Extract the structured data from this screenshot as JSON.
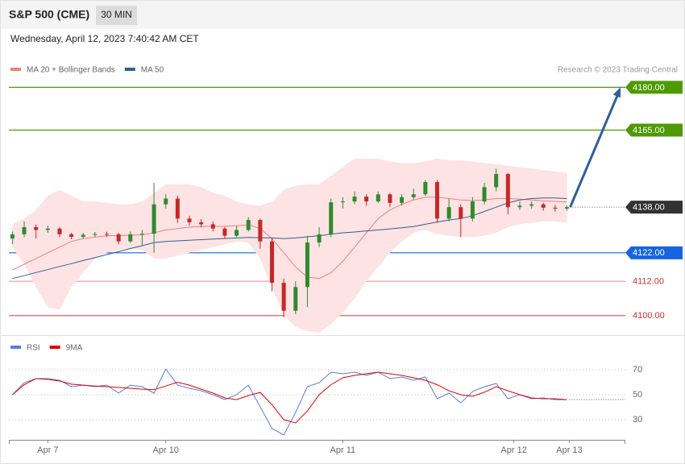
{
  "header": {
    "title": "S&P 500 (CME)",
    "interval": "30 MIN",
    "timestamp": "Wednesday, April 12, 2023 7:40:42 AM CET"
  },
  "chart_data": [
    {
      "type": "candlestick",
      "annotation": "Research © 2023 Trading Central",
      "up_color": "#2e8b2e",
      "down_color": "#c62828",
      "xlim": [
        -0.3,
        51.95
      ],
      "ylim": [
        4093.2,
        4183.4
      ],
      "candles": [
        [
          4127,
          4129.5,
          4125,
          4128.5
        ],
        [
          4128.5,
          4133,
          4127.5,
          4131
        ],
        [
          4131,
          4132,
          4127,
          4130
        ],
        [
          4130,
          4131.5,
          4129,
          4130.5
        ],
        [
          4130.5,
          4131,
          4127.5,
          4128.5
        ],
        [
          4128.5,
          4129,
          4126.8,
          4127.6
        ],
        [
          4127.6,
          4129,
          4127,
          4128.3
        ],
        [
          4128.3,
          4129.3,
          4127.6,
          4128.6
        ],
        [
          4128.6,
          4129.4,
          4127.5,
          4128.5
        ],
        [
          4128.5,
          4129,
          4125,
          4126
        ],
        [
          4126,
          4129.5,
          4125.5,
          4128.5
        ],
        [
          4128.5,
          4130,
          4124.5,
          4128.7
        ],
        [
          4128.7,
          4146.5,
          4122,
          4139
        ],
        [
          4139,
          4142.5,
          4137.5,
          4141
        ],
        [
          4141,
          4142,
          4132.5,
          4134
        ],
        [
          4134,
          4135,
          4131.5,
          4132.7
        ],
        [
          4132.7,
          4133.8,
          4131,
          4132
        ],
        [
          4132,
          4133,
          4129.5,
          4130.5
        ],
        [
          4130.5,
          4131,
          4127,
          4128
        ],
        [
          4128,
          4131.5,
          4127.5,
          4130
        ],
        [
          4130,
          4134.5,
          4129.5,
          4133.5
        ],
        [
          4133.5,
          4134,
          4123.5,
          4126
        ],
        [
          4126,
          4127,
          4108.5,
          4111.5
        ],
        [
          4111.5,
          4113,
          4099.4,
          4101.7
        ],
        [
          4101.7,
          4112,
          4100.5,
          4110
        ],
        [
          4110,
          4128,
          4103,
          4125.6
        ],
        [
          4125.6,
          4131,
          4124,
          4128.5
        ],
        [
          4128.5,
          4141,
          4127.5,
          4139.7
        ],
        [
          4139.7,
          4141.5,
          4137.5,
          4140
        ],
        [
          4140,
          4143.5,
          4139,
          4141.7
        ],
        [
          4141.7,
          4142.5,
          4138.5,
          4140
        ],
        [
          4140,
          4143.5,
          4139.5,
          4142.5
        ],
        [
          4142.5,
          4143,
          4138,
          4139.5
        ],
        [
          4139.5,
          4142.5,
          4138.5,
          4141.5
        ],
        [
          4141.5,
          4144.5,
          4140.5,
          4142.5
        ],
        [
          4142.5,
          4147.5,
          4142,
          4146.8
        ],
        [
          4146.8,
          4147.5,
          4132.5,
          4134
        ],
        [
          4134,
          4141,
          4133,
          4138
        ],
        [
          4138,
          4139,
          4127.5,
          4134
        ],
        [
          4134,
          4141.5,
          4133,
          4140
        ],
        [
          4140,
          4146.5,
          4139,
          4145
        ],
        [
          4145,
          4151.5,
          4143.5,
          4149.6
        ],
        [
          4149.6,
          4150,
          4135.5,
          4138
        ],
        [
          4138,
          4140,
          4137,
          4138.5
        ],
        [
          4138.5,
          4140,
          4137.5,
          4139
        ],
        [
          4139,
          4139.5,
          4136.8,
          4137.8
        ],
        [
          4137.8,
          4138.8,
          4136.5,
          4137.5
        ],
        [
          4137.5,
          4138.6,
          4136.8,
          4138
        ]
      ],
      "series": [
        {
          "name": "MA 20 + Bollinger Bands",
          "color": "#f08080",
          "band_color": "#fde3e3",
          "values": [
            4116,
            4118,
            4120,
            4122,
            4124,
            4126,
            4127,
            4127.5,
            4128,
            4128,
            4128.2,
            4128.3,
            4129,
            4130,
            4130.5,
            4131,
            4131.2,
            4131.3,
            4131.3,
            4131.5,
            4131.8,
            4130.5,
            4127,
            4122,
            4117,
            4113.5,
            4113,
            4115,
            4119,
            4124,
            4129,
            4134,
            4137,
            4139,
            4140.5,
            4141.5,
            4141.5,
            4141,
            4140.5,
            4140.3,
            4140.5,
            4141,
            4141,
            4140.8,
            4140.5,
            4140.2,
            4140,
            4139.8
          ],
          "upper": [
            4132,
            4134,
            4137,
            4142,
            4144,
            4142,
            4140,
            4140,
            4139.5,
            4139,
            4139,
            4140,
            4143,
            4146,
            4146,
            4146,
            4145,
            4143,
            4142,
            4140,
            4139,
            4138.5,
            4140,
            4144,
            4145.5,
            4146,
            4146,
            4149,
            4152,
            4155,
            4155,
            4155,
            4154,
            4153.5,
            4153.5,
            4154,
            4155,
            4154.5,
            4154.5,
            4154,
            4153.5,
            4153,
            4152.5,
            4152,
            4151.5,
            4151,
            4150.5,
            4150
          ],
          "lower": [
            4124,
            4118,
            4110,
            4103,
            4102,
            4110,
            4115,
            4120,
            4122,
            4123,
            4123.5,
            4123,
            4120,
            4120,
            4121,
            4122,
            4123,
            4124,
            4125,
            4126,
            4125.5,
            4120,
            4110,
            4100,
            4096,
            4094.5,
            4094,
            4097,
            4101,
            4106,
            4112,
            4117,
            4122,
            4126,
            4129,
            4130,
            4128.5,
            4128,
            4127.5,
            4127.5,
            4128,
            4129,
            4131,
            4132,
            4132.5,
            4133,
            4133,
            4132.5
          ]
        },
        {
          "name": "MA 50",
          "color": "#2f5f98",
          "values": [
            4113,
            4114,
            4115.1,
            4116.1,
            4117.2,
            4118.2,
            4119.3,
            4120.3,
            4121.4,
            4122.4,
            4123.5,
            4124.5,
            4125.6,
            4126,
            4126.2,
            4126.4,
            4126.6,
            4126.8,
            4127,
            4127.2,
            4127.4,
            4127.3,
            4127.2,
            4127,
            4127.2,
            4127.6,
            4128,
            4128.5,
            4129,
            4129.3,
            4129.7,
            4130,
            4130.4,
            4130.8,
            4131.2,
            4132,
            4132.8,
            4133.5,
            4134,
            4135,
            4136.5,
            4138,
            4139.5,
            4140.5,
            4141,
            4141.2,
            4141.2,
            4141
          ]
        }
      ],
      "levels": [
        {
          "value": 4180,
          "label": "4180.00",
          "color": "#4e9a06",
          "box": true,
          "line": "solid"
        },
        {
          "value": 4165,
          "label": "4165.00",
          "color": "#4e9a06",
          "box": true,
          "line": "solid"
        },
        {
          "value": 4138,
          "label": "4138.00",
          "color": "#333333",
          "box": true,
          "line": "dotted"
        },
        {
          "value": 4122,
          "label": "4122.00",
          "color": "#1565e0",
          "box": true,
          "line": "solid"
        },
        {
          "value": 4112,
          "label": "4112.00",
          "color": "#d32f2f",
          "box": false,
          "line": "solid",
          "line_color": "#f4a0a0"
        },
        {
          "value": 4100,
          "label": "4100.00",
          "color": "#d32f2f",
          "box": false,
          "line": "solid",
          "line_color": "#e06060"
        }
      ],
      "arrow_color": "#2f5f98"
    },
    {
      "type": "line",
      "xlim": [
        -0.3,
        51.95
      ],
      "ylim": [
        14.5,
        82.3
      ],
      "yticks": [
        30,
        50,
        70
      ],
      "grid": true,
      "xticks": [
        {
          "value": 3,
          "label": "Apr 7"
        },
        {
          "value": 13,
          "label": "Apr 10"
        },
        {
          "value": 28,
          "label": "Apr 11"
        },
        {
          "value": 42.5,
          "label": "Apr 12"
        },
        {
          "value": 47.2,
          "label": "Apr 13"
        }
      ],
      "series": [
        {
          "name": "RSI",
          "color": "#5a7ee0",
          "values": [
            50,
            59.7,
            62.9,
            62.9,
            61.6,
            56.5,
            57.7,
            56.5,
            57.7,
            51.3,
            57.7,
            56.5,
            51.3,
            70.6,
            57.7,
            55.2,
            53.2,
            50,
            46.1,
            50,
            57.7,
            40.3,
            22.9,
            17.7,
            35.8,
            56.5,
            59.7,
            68.1,
            66.8,
            68.1,
            65.5,
            68.1,
            62.9,
            64.2,
            61.6,
            64.2,
            46.8,
            51.3,
            43.5,
            52.6,
            56.5,
            59,
            46.8,
            50,
            46.8,
            47.4,
            46.1,
            46.1
          ]
        },
        {
          "name": "9MA",
          "color": "#e00000",
          "values": [
            50,
            58,
            62.9,
            62.3,
            61,
            58.5,
            57.7,
            57,
            56.5,
            55.8,
            55.2,
            54.5,
            54,
            57,
            60,
            57.7,
            54.5,
            51.3,
            47.4,
            46.1,
            49.4,
            51.9,
            42,
            30,
            27.4,
            37,
            50,
            58,
            63.6,
            65.5,
            66.8,
            68.1,
            66.8,
            65.5,
            63.6,
            61.6,
            58,
            53.2,
            50,
            48.7,
            52,
            56.5,
            53.2,
            50,
            47.4,
            46.8,
            46.8,
            46.1
          ]
        }
      ]
    }
  ]
}
